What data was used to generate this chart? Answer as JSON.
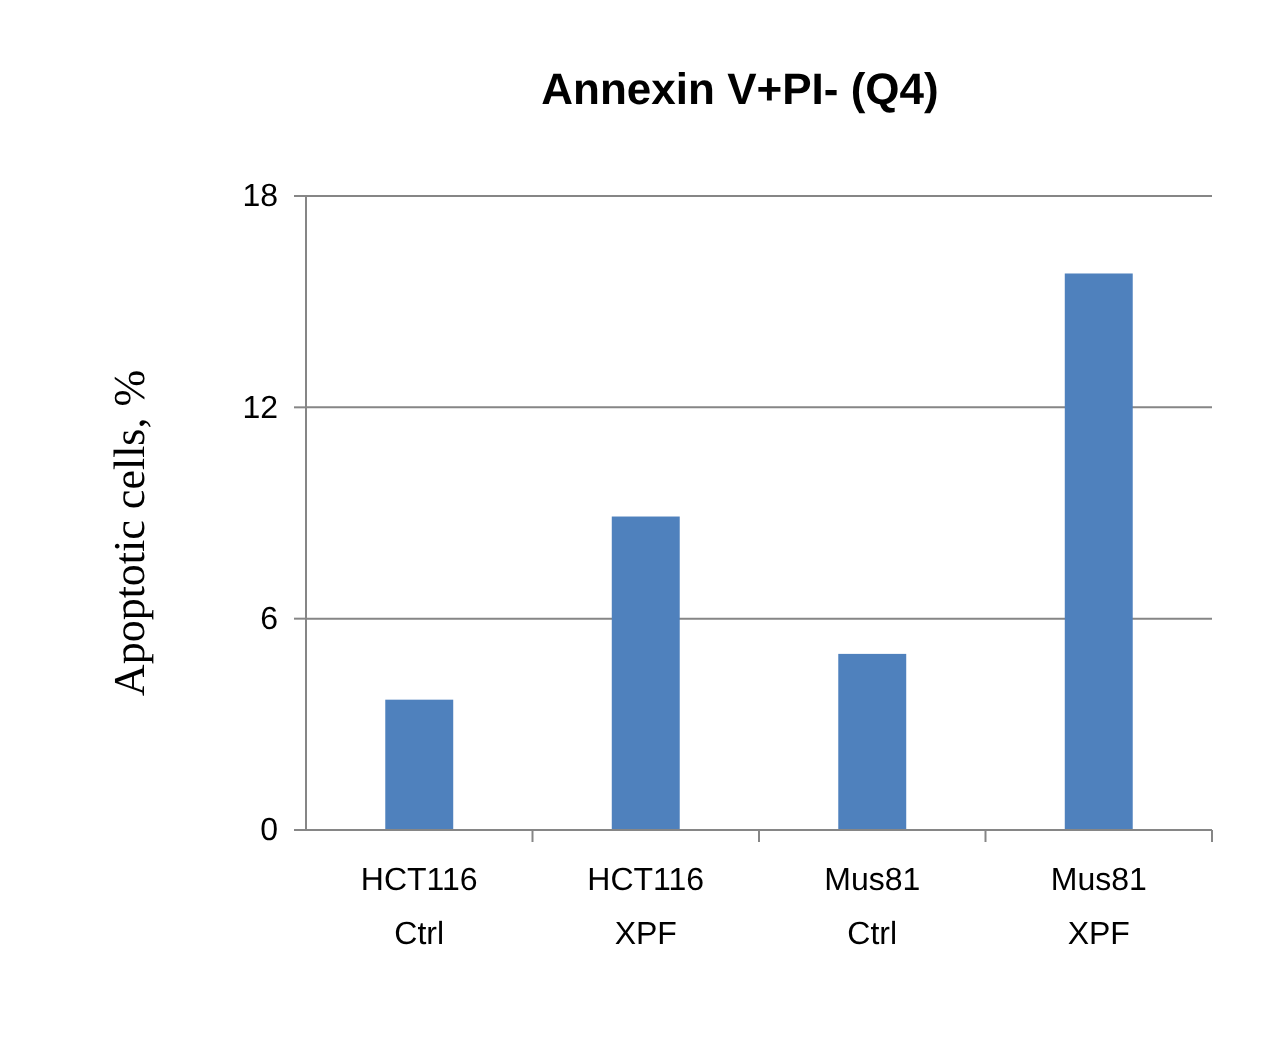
{
  "chart_data": {
    "type": "bar",
    "title": "Annexin V+PI- (Q4)",
    "ylabel": "Apoptotic cells, %",
    "categories": [
      "HCT116 Ctrl",
      "HCT116 XPF",
      "Mus81 Ctrl",
      "Mus81 XPF"
    ],
    "values": [
      3.7,
      8.9,
      5.0,
      15.8
    ],
    "color": "#4f81bd",
    "ylim": [
      0,
      18
    ],
    "yticks": [
      0,
      6,
      12,
      18
    ],
    "grid": "y"
  }
}
